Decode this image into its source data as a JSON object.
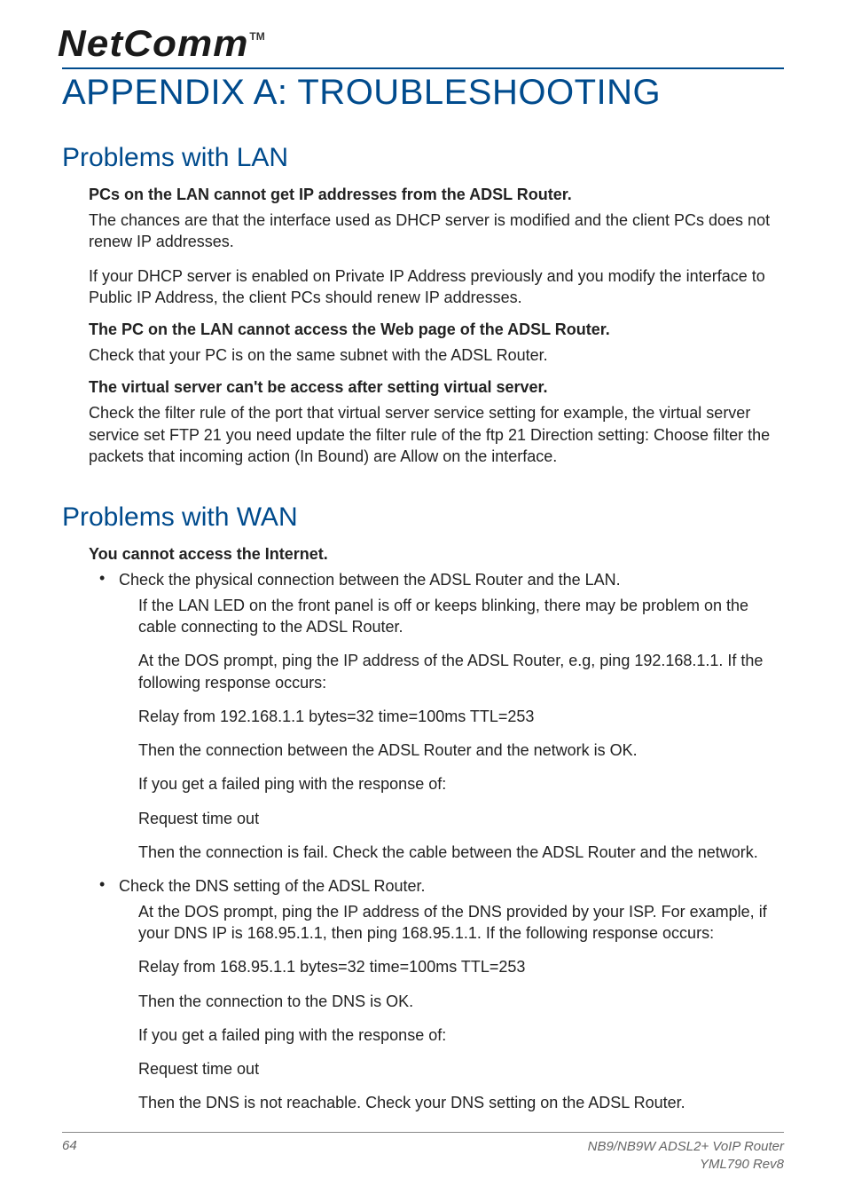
{
  "brand": {
    "name": "NetComm",
    "tm": "TM"
  },
  "colors": {
    "brand_blue": "#004b8d",
    "text": "#222222",
    "footer": "#666666",
    "rule": "#888888",
    "bg": "#ffffff"
  },
  "title": "APPENDIX A:  TROUBLESHOOTING",
  "sections": [
    {
      "heading": "Problems with LAN",
      "items": [
        {
          "subheading": "PCs on the LAN cannot get IP addresses from the ADSL Router.",
          "paragraphs": [
            "The chances are that the interface used as DHCP server is modified and the client PCs does not renew IP addresses.",
            "If your DHCP server is enabled on Private IP Address previously and you modify the interface to Public IP Address, the client PCs should renew IP addresses."
          ]
        },
        {
          "subheading": "The PC on the LAN cannot access the Web page of the ADSL Router.",
          "paragraphs": [
            "Check that your PC is on the same subnet with the ADSL Router."
          ]
        },
        {
          "subheading": "The virtual server can't be access after setting virtual server.",
          "paragraphs": [
            "Check the filter rule of the port that virtual server service setting for example, the virtual server service set FTP 21 you need update the filter rule of the ftp 21 Direction setting: Choose filter the packets that incoming action (In Bound) are Allow on the interface."
          ]
        }
      ]
    },
    {
      "heading": "Problems with WAN",
      "items": [
        {
          "subheading": "You cannot access the Internet.",
          "bullets": [
            {
              "lead": "Check the physical connection between the ADSL Router and the LAN.",
              "paras": [
                "If the LAN LED on the front panel is off or keeps blinking, there may be problem on the cable connecting to the ADSL Router.",
                "At the DOS prompt, ping the IP address of the ADSL Router, e.g, ping 192.168.1.1. If the following response occurs:",
                "Relay from 192.168.1.1 bytes=32 time=100ms TTL=253",
                "Then the connection between the ADSL Router and the network is OK.",
                "If you get a failed ping with the response of:",
                "Request time out",
                "Then the connection is fail. Check the cable between the ADSL Router and the network."
              ]
            },
            {
              "lead": "Check the DNS setting of the ADSL Router.",
              "paras": [
                "At the DOS prompt, ping the IP address of the DNS provided by your ISP. For example, if your DNS IP is 168.95.1.1, then ping 168.95.1.1. If the following response occurs:",
                "Relay from 168.95.1.1 bytes=32 time=100ms TTL=253",
                "Then the connection to the DNS is OK.",
                "If you get a failed ping with the response of:",
                "Request time out",
                "Then the DNS is not reachable. Check your DNS setting on the ADSL Router."
              ]
            }
          ]
        }
      ]
    }
  ],
  "footer": {
    "page_number": "64",
    "product": "NB9/NB9W ADSL2+ VoIP Router",
    "doc_rev": "YML790 Rev8"
  }
}
